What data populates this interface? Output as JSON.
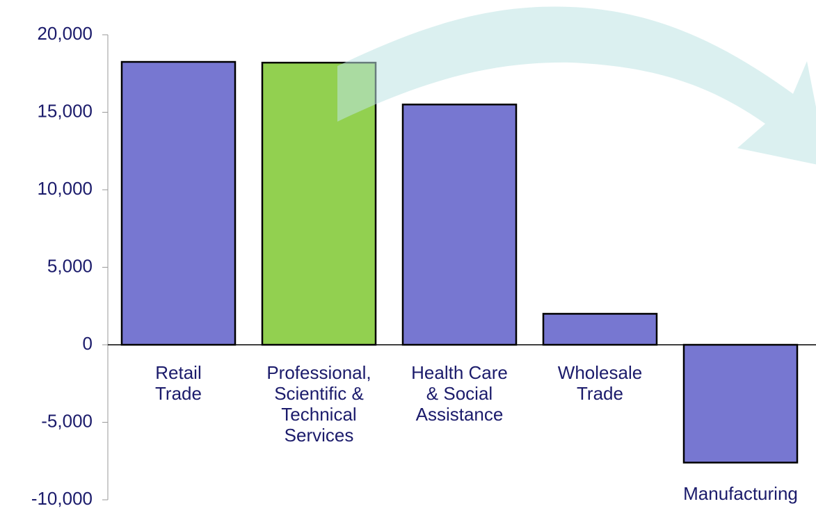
{
  "chart_data": {
    "type": "bar",
    "categories": [
      "Retail\nTrade",
      "Professional,\nScientific &\nTechnical\nServices",
      "Health Care\n& Social\nAssistance",
      "Wholesale\nTrade",
      "Manufacturing"
    ],
    "values": [
      18250,
      18200,
      15500,
      2000,
      -7600
    ],
    "colors": [
      "#7777d1",
      "#92d050",
      "#7777d1",
      "#7777d1",
      "#7777d1"
    ],
    "ylim": [
      -10000,
      20000
    ],
    "yticks": [
      {
        "value": -10000,
        "label": "-10,000"
      },
      {
        "value": -5000,
        "label": "-5,000"
      },
      0,
      {
        "value": 5000,
        "label": "5,000"
      },
      {
        "value": 10000,
        "label": "10,000"
      },
      {
        "value": 15000,
        "label": "15,000"
      },
      {
        "value": 20000,
        "label": "20,000"
      }
    ]
  }
}
